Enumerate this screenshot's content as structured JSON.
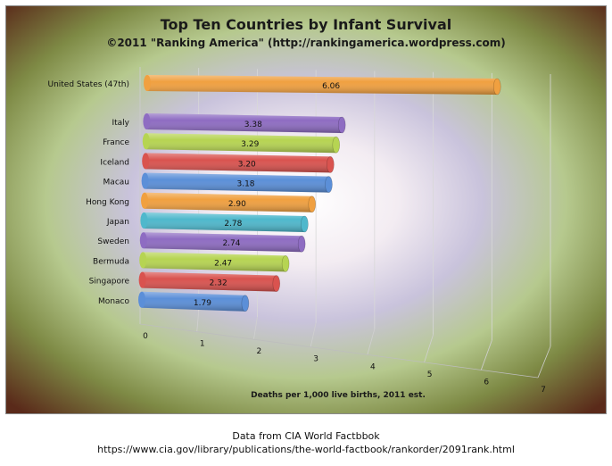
{
  "chart_data": {
    "type": "bar",
    "orientation": "horizontal",
    "title": "Top Ten Countries by Infant Survival",
    "subtitle": "©2011 \"Ranking America\" (http://rankingamerica.wordpress.com)",
    "xlabel": "Deaths per 1,000 live births, 2011 est.",
    "ylabel": "",
    "xlim": [
      0,
      7
    ],
    "x_ticks": [
      "0",
      "1",
      "2",
      "3",
      "4",
      "5",
      "6",
      "7"
    ],
    "grid": true,
    "categories": [
      "United States (47th)",
      "Italy",
      "France",
      "Iceland",
      "Macau",
      "Hong Kong",
      "Japan",
      "Sweden",
      "Bermuda",
      "Singapore",
      "Monaco"
    ],
    "values": [
      6.06,
      3.38,
      3.29,
      3.2,
      3.18,
      2.9,
      2.78,
      2.74,
      2.47,
      2.32,
      1.79
    ],
    "value_labels": [
      "6.06",
      "3.38",
      "3.29",
      "3.20",
      "3.18",
      "2.90",
      "2.78",
      "2.74",
      "2.47",
      "2.32",
      "1.79"
    ],
    "bar_colors": [
      "#f0a040",
      "#8e6cc2",
      "#b6d452",
      "#d9534f",
      "#5b8fd8",
      "#f0a040",
      "#4fb8cc",
      "#8e6cc2",
      "#b6d452",
      "#d9534f",
      "#5b8fd8"
    ]
  },
  "source": {
    "line1": "Data from CIA World Factbbok",
    "line2": "https://www.cia.gov/library/publications/the-world-factbook/rankorder/2091rank.html"
  }
}
